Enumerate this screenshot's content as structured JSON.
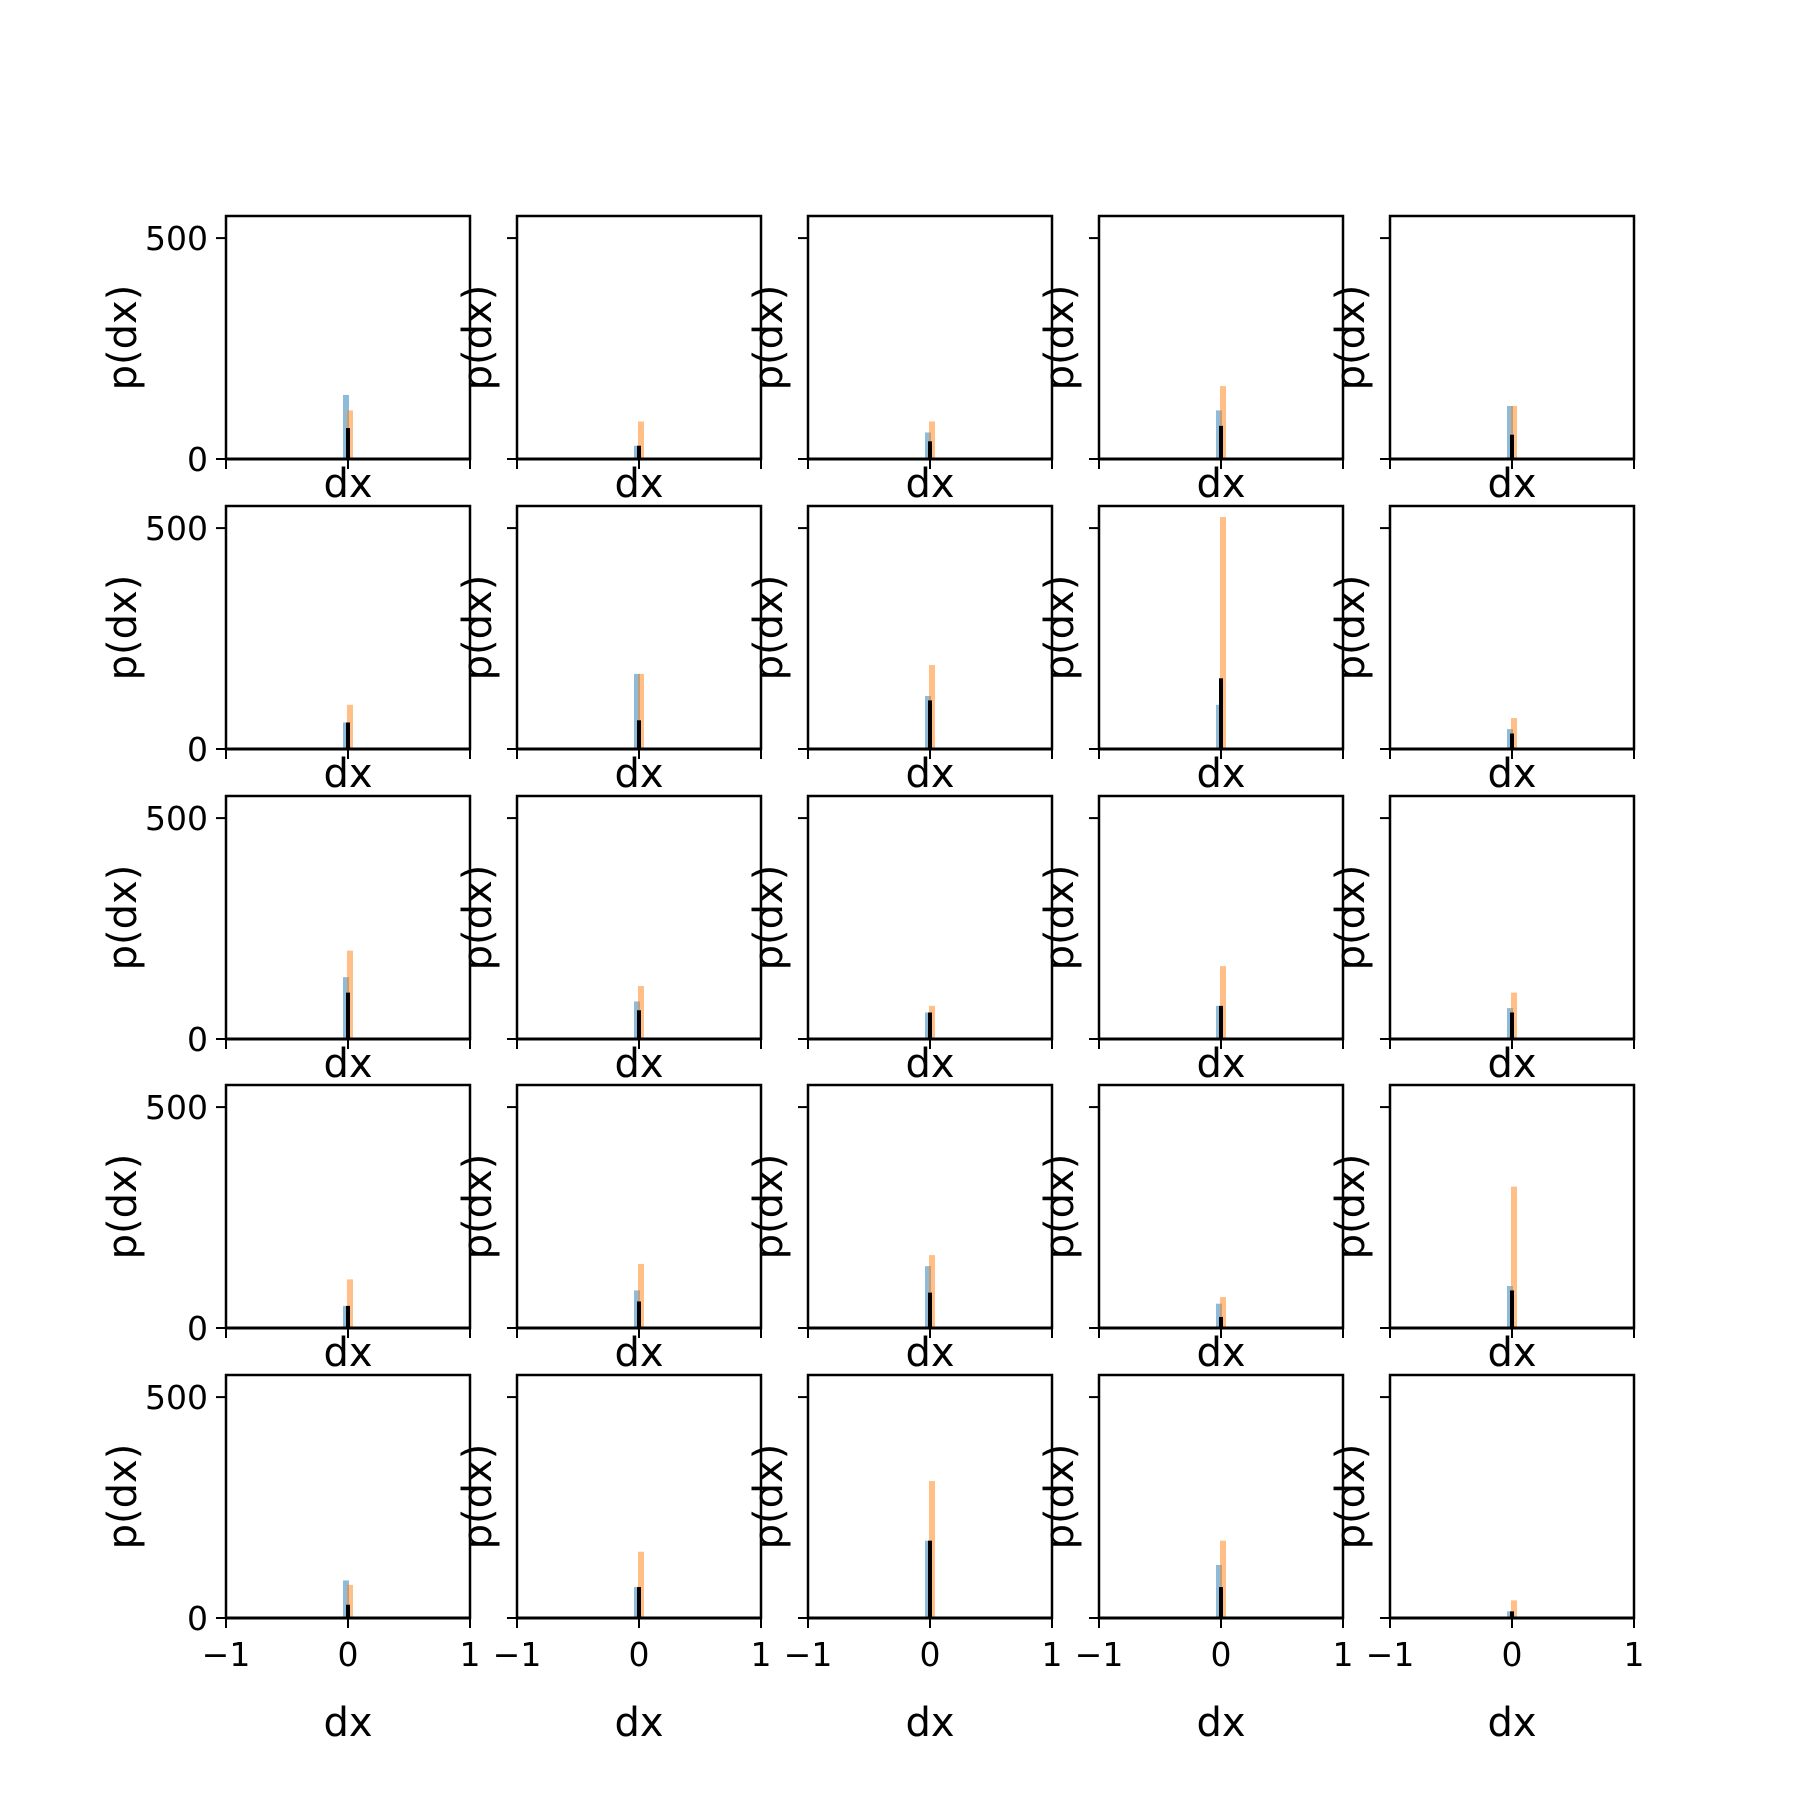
{
  "chart_data": {
    "type": "histogram-grid",
    "rows": 5,
    "cols": 5,
    "xlim": [
      -1,
      1
    ],
    "ylim": [
      0,
      550
    ],
    "xticks": [
      -1,
      0,
      1
    ],
    "xtick_labels": [
      "−1",
      "0",
      "1"
    ],
    "yticks": [
      0,
      500
    ],
    "ytick_labels": [
      "0",
      "500"
    ],
    "xlabel": "dx",
    "ylabel": "p(dx)",
    "sharey": true,
    "colors": {
      "blue": "#1f77b4",
      "orange": "#ff7f0e",
      "black": "#000000"
    },
    "series_keys": [
      "blue",
      "orange",
      "black"
    ],
    "panels": [
      {
        "blue": 145,
        "orange": 110,
        "black": 70
      },
      {
        "blue": 30,
        "orange": 85,
        "black": 30
      },
      {
        "blue": 60,
        "orange": 85,
        "black": 40
      },
      {
        "blue": 110,
        "orange": 165,
        "black": 75
      },
      {
        "blue": 120,
        "orange": 120,
        "black": 55
      },
      {
        "blue": 60,
        "orange": 100,
        "black": 60
      },
      {
        "blue": 170,
        "orange": 170,
        "black": 65
      },
      {
        "blue": 120,
        "orange": 190,
        "black": 110
      },
      {
        "blue": 100,
        "orange": 525,
        "black": 160
      },
      {
        "blue": 45,
        "orange": 70,
        "black": 35
      },
      {
        "blue": 140,
        "orange": 200,
        "black": 105
      },
      {
        "blue": 85,
        "orange": 120,
        "black": 65
      },
      {
        "blue": 60,
        "orange": 75,
        "black": 60
      },
      {
        "blue": 75,
        "orange": 165,
        "black": 75
      },
      {
        "blue": 70,
        "orange": 105,
        "black": 60
      },
      {
        "blue": 50,
        "orange": 110,
        "black": 50
      },
      {
        "blue": 85,
        "orange": 145,
        "black": 60
      },
      {
        "blue": 140,
        "orange": 165,
        "black": 80
      },
      {
        "blue": 55,
        "orange": 70,
        "black": 25
      },
      {
        "blue": 95,
        "orange": 320,
        "black": 85
      },
      {
        "blue": 85,
        "orange": 75,
        "black": 30
      },
      {
        "blue": 70,
        "orange": 150,
        "black": 70
      },
      {
        "blue": 175,
        "orange": 310,
        "black": 175
      },
      {
        "blue": 120,
        "orange": 175,
        "black": 70
      },
      {
        "blue": 15,
        "orange": 40,
        "black": 15
      }
    ]
  }
}
